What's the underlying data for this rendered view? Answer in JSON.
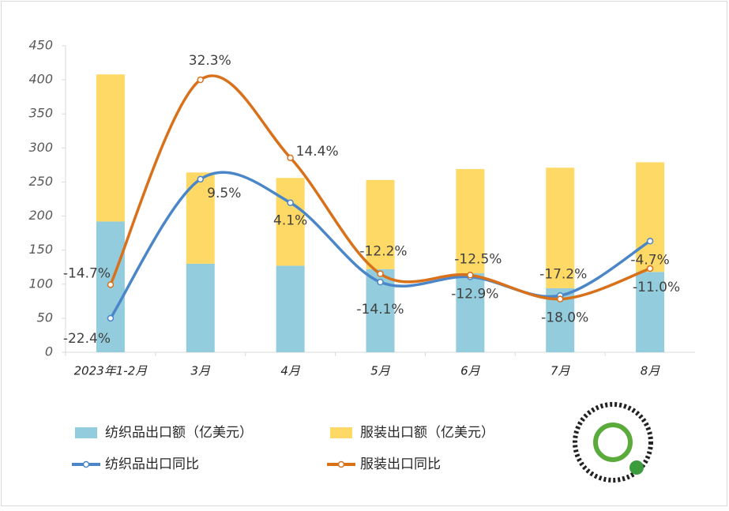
{
  "chart_data": {
    "type": "bar-line",
    "categories": [
      "2023年1-2月",
      "3月",
      "4月",
      "5月",
      "6月",
      "7月",
      "8月"
    ],
    "ylim": [
      0,
      450
    ],
    "yticks": [
      0,
      50,
      100,
      150,
      200,
      250,
      300,
      350,
      400,
      450
    ],
    "y2lim": [
      -30.2,
      40.1
    ],
    "series": [
      {
        "name": "纺织品出口额（亿美元）",
        "type": "bar",
        "color": "#93cddd",
        "values": [
          192,
          130,
          127,
          122,
          116,
          94,
          118
        ]
      },
      {
        "name": "服装出口额（亿美元）",
        "type": "bar",
        "color": "#ffd966",
        "values": [
          216,
          134,
          129,
          131,
          153,
          177,
          161
        ]
      },
      {
        "name": "纺织品出口同比",
        "type": "line",
        "axis": "y2",
        "color": "#4a86c8",
        "values": [
          -22.4,
          9.5,
          4.1,
          -14.1,
          -12.9,
          -17.2,
          -4.7
        ],
        "value_labels": [
          "-22.4%",
          "9.5%",
          "4.1%",
          "-14.1%",
          "-12.9%",
          "-17.2%",
          "-4.7%"
        ]
      },
      {
        "name": "服装出口同比",
        "type": "line",
        "axis": "y2",
        "color": "#d9711b",
        "values": [
          -14.7,
          32.3,
          14.4,
          -12.2,
          -12.5,
          -18.0,
          -11.0
        ],
        "value_labels": [
          "-14.7%",
          "32.3%",
          "14.4%",
          "-12.2%",
          "-12.5%",
          "-18.0%",
          "-11.0%"
        ]
      }
    ]
  }
}
